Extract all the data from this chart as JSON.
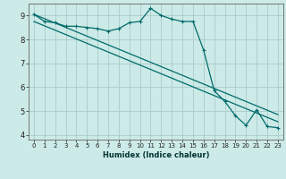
{
  "title": "",
  "xlabel": "Humidex (Indice chaleur)",
  "ylabel": "",
  "bg_color": "#cceae7",
  "grid_color": "#aaccca",
  "line_color": "#006b6b",
  "xlim": [
    -0.5,
    23.5
  ],
  "ylim": [
    3.8,
    9.5
  ],
  "xticks": [
    0,
    1,
    2,
    3,
    4,
    5,
    6,
    7,
    8,
    9,
    10,
    11,
    12,
    13,
    14,
    15,
    16,
    17,
    18,
    19,
    20,
    21,
    22,
    23
  ],
  "yticks": [
    4,
    5,
    6,
    7,
    8,
    9
  ],
  "line1_x": [
    0,
    1,
    2,
    3,
    4,
    5,
    6,
    7,
    8,
    9,
    10,
    11,
    12,
    13,
    14,
    15,
    16,
    17,
    18,
    19,
    20,
    21,
    22,
    23
  ],
  "line1_y": [
    9.05,
    8.75,
    8.7,
    8.55,
    8.55,
    8.5,
    8.45,
    8.35,
    8.45,
    8.7,
    8.75,
    9.3,
    9.0,
    8.85,
    8.75,
    8.75,
    7.55,
    5.85,
    5.4,
    4.8,
    4.4,
    5.05,
    4.35,
    4.3
  ],
  "line2_x": [
    0,
    23
  ],
  "line2_y": [
    9.05,
    4.85
  ],
  "line3_x": [
    0,
    23
  ],
  "line3_y": [
    8.75,
    4.55
  ],
  "marker": "+"
}
